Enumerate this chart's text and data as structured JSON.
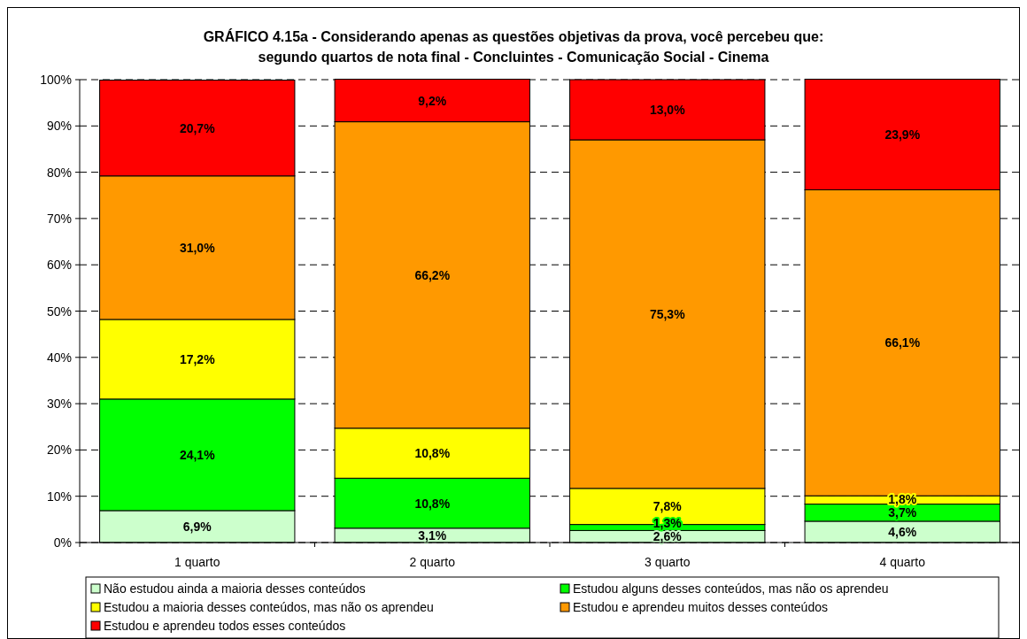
{
  "chart_data": {
    "type": "bar",
    "stacked": true,
    "title": "GRÁFICO 4.15a - Considerando apenas as questões objetivas da prova, você percebeu que:\nsegundo quartos de nota final - Concluintes - Comunicação Social - Cinema",
    "categories": [
      "1 quarto",
      "2 quarto",
      "3 quarto",
      "4 quarto"
    ],
    "series": [
      {
        "name": "Não estudou ainda a maioria desses conteúdos",
        "color": "#ccffcc",
        "values": [
          6.9,
          3.1,
          2.6,
          4.6
        ],
        "value_labels": [
          "6,9%",
          "3,1%",
          "2,6%",
          "4,6%"
        ]
      },
      {
        "name": "Estudou alguns desses conteúdos, mas não os aprendeu",
        "color": "#00ff00",
        "values": [
          24.1,
          10.8,
          1.3,
          3.7
        ],
        "value_labels": [
          "24,1%",
          "10,8%",
          "1,3%",
          "3,7%"
        ]
      },
      {
        "name": "Estudou a maioria desses conteúdos, mas não os aprendeu",
        "color": "#ffff00",
        "values": [
          17.2,
          10.8,
          7.8,
          1.8
        ],
        "value_labels": [
          "17,2%",
          "10,8%",
          "7,8%",
          "1,8%"
        ]
      },
      {
        "name": "Estudou e aprendeu muitos desses conteúdos",
        "color": "#ff9900",
        "values": [
          31.0,
          66.2,
          75.3,
          66.1
        ],
        "value_labels": [
          "31,0%",
          "66,2%",
          "75,3%",
          "66,1%"
        ]
      },
      {
        "name": "Estudou e aprendeu todos esses conteúdos",
        "color": "#ff0000",
        "values": [
          20.7,
          9.2,
          13.0,
          23.9
        ],
        "value_labels": [
          "20,7%",
          "9,2%",
          "13,0%",
          "23,9%"
        ]
      }
    ],
    "ylim": [
      0,
      100
    ],
    "yticks": [
      {
        "value": 0,
        "label": "0%"
      },
      {
        "value": 10,
        "label": "10%"
      },
      {
        "value": 20,
        "label": "20%"
      },
      {
        "value": 30,
        "label": "30%"
      },
      {
        "value": 40,
        "label": "40%"
      },
      {
        "value": 50,
        "label": "50%"
      },
      {
        "value": 60,
        "label": "60%"
      },
      {
        "value": 70,
        "label": "70%"
      },
      {
        "value": 80,
        "label": "80%"
      },
      {
        "value": 90,
        "label": "90%"
      },
      {
        "value": 100,
        "label": "100%"
      }
    ],
    "grid": "y",
    "legend": "bottom"
  }
}
